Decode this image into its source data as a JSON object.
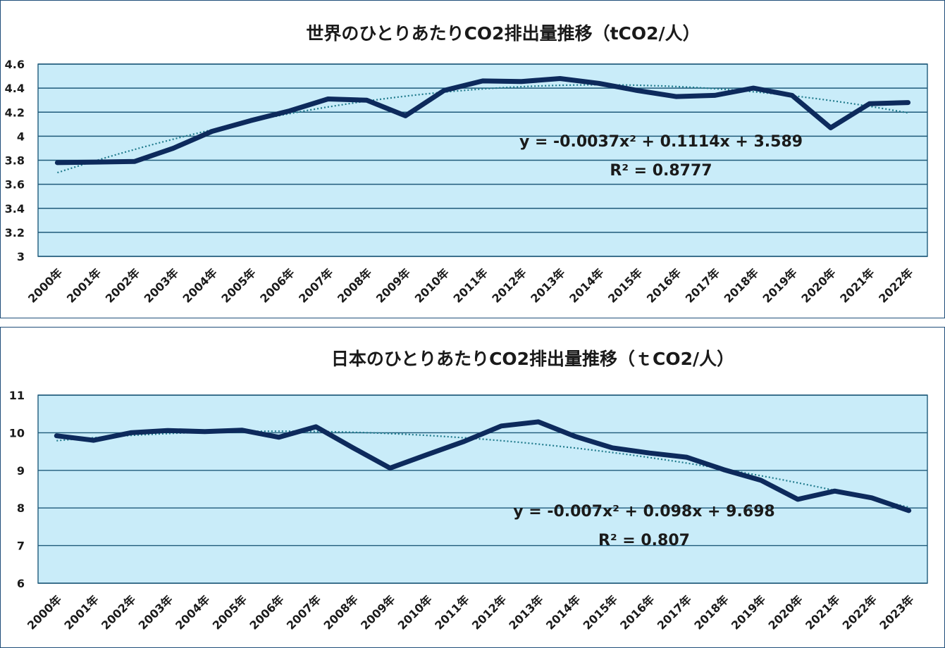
{
  "chart_data": [
    {
      "type": "line",
      "title": "世界のひとりあたりCO2排出量推移（tCO2/人）",
      "xlabel": "",
      "ylabel": "",
      "ylim": [
        3,
        4.6
      ],
      "yticks": [
        "3",
        "3.2",
        "3.4",
        "3.6",
        "3.8",
        "4",
        "4.2",
        "4.4",
        "4.6"
      ],
      "grid": true,
      "categories": [
        "2000年",
        "2001年",
        "2002年",
        "2003年",
        "2004年",
        "2005年",
        "2006年",
        "2007年",
        "2008年",
        "2009年",
        "2010年",
        "2011年",
        "2012年",
        "2013年",
        "2014年",
        "2015年",
        "2016年",
        "2017年",
        "2018年",
        "2019年",
        "2020年",
        "2021年",
        "2022年"
      ],
      "series": [
        {
          "values": [
            3.78,
            3.785,
            3.79,
            3.9,
            4.04,
            4.13,
            4.21,
            4.31,
            4.3,
            4.17,
            4.38,
            4.46,
            4.455,
            4.48,
            4.44,
            4.38,
            4.33,
            4.34,
            4.4,
            4.34,
            4.07,
            4.27,
            4.28
          ],
          "color": "#0d2a5c"
        }
      ],
      "trendline": {
        "type": "polynomial",
        "order": 2,
        "a": -0.0037,
        "b": 0.1114,
        "c": 3.589,
        "color": "#1f7a8c"
      },
      "annotations": [
        "y = -0.0037x² + 0.1114x + 3.589",
        "R² = 0.8777"
      ],
      "plot_bg": "#c9ecf9",
      "grid_color": "#1f5a7a"
    },
    {
      "type": "line",
      "title": "日本のひとりあたりCO2排出量推移（ｔCO2/人）",
      "xlabel": "",
      "ylabel": "",
      "ylim": [
        6,
        11
      ],
      "yticks": [
        "6",
        "7",
        "8",
        "9",
        "10",
        "11"
      ],
      "grid": true,
      "categories": [
        "2000年",
        "2001年",
        "2002年",
        "2003年",
        "2004年",
        "2005年",
        "2006年",
        "2007年",
        "2008年",
        "2009年",
        "2010年",
        "2011年",
        "2012年",
        "2013年",
        "2014年",
        "2015年",
        "2016年",
        "2017年",
        "2018年",
        "2019年",
        "2020年",
        "2021年",
        "2022年",
        "2023年"
      ],
      "series": [
        {
          "values": [
            9.92,
            9.8,
            10.0,
            10.06,
            10.03,
            10.07,
            9.88,
            10.16,
            9.6,
            9.06,
            9.42,
            9.77,
            10.18,
            10.29,
            9.9,
            9.6,
            9.46,
            9.35,
            9.02,
            8.74,
            8.23,
            8.45,
            8.27,
            7.93
          ],
          "color": "#0d2a5c"
        }
      ],
      "trendline": {
        "type": "polynomial",
        "order": 2,
        "a": -0.007,
        "b": 0.098,
        "c": 9.698,
        "color": "#1f7a8c"
      },
      "annotations": [
        "y = -0.007x² + 0.098x + 9.698",
        "R² = 0.807"
      ],
      "plot_bg": "#c9ecf9",
      "grid_color": "#1f5a7a"
    }
  ]
}
